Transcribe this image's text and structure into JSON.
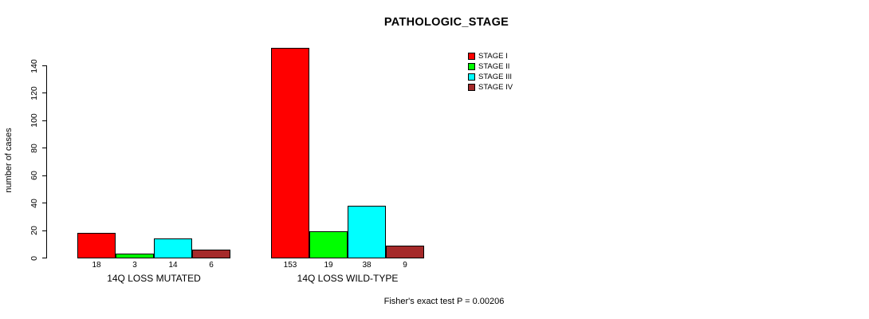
{
  "chart_data": {
    "type": "bar",
    "title": "PATHOLOGIC_STAGE",
    "ylabel": "number of cases",
    "xlabel": "",
    "ylim": [
      0,
      140
    ],
    "yticks": [
      0,
      20,
      40,
      60,
      80,
      100,
      120,
      140
    ],
    "categories": [
      "14Q LOSS MUTATED",
      "14Q LOSS WILD-TYPE"
    ],
    "series": [
      {
        "name": "STAGE I",
        "color": "#ff0000",
        "values": [
          18,
          153
        ]
      },
      {
        "name": "STAGE II",
        "color": "#00ff00",
        "values": [
          3,
          19
        ]
      },
      {
        "name": "STAGE III",
        "color": "#00ffff",
        "values": [
          14,
          38
        ]
      },
      {
        "name": "STAGE IV",
        "color": "#a52a2a",
        "values": [
          6,
          9
        ]
      }
    ],
    "value_labels_shown": true,
    "legend_position": "top-right",
    "grid": false,
    "background_color": "#ffffff",
    "bar_border_color": "#000000",
    "annotation": "Fisher's exact test P = 0.00206"
  }
}
